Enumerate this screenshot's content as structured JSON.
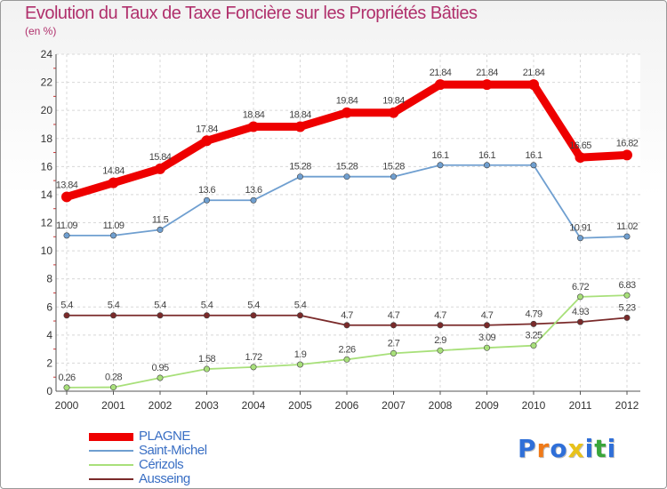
{
  "page": {
    "title": "Evolution du Taux de Taxe Foncière sur les Propriétés Bâties",
    "subtitle": "(en %)"
  },
  "chart_data": {
    "type": "line",
    "title": "Evolution du Taux de Taxe Foncière sur les Propriétés Bâties",
    "ylabel": "(en %)",
    "xlabel": "",
    "ylim": [
      0,
      24
    ],
    "yticks": [
      0,
      2,
      4,
      6,
      8,
      10,
      12,
      14,
      16,
      18,
      20,
      22,
      24
    ],
    "grid": true,
    "legend_position": "bottom-left",
    "categories": [
      "2000",
      "2001",
      "2002",
      "2003",
      "2004",
      "2005",
      "2006",
      "2007",
      "2008",
      "2009",
      "2010",
      "2011",
      "2012"
    ],
    "series": [
      {
        "name": "PLAGNE",
        "color": "#ee0000",
        "values": [
          13.84,
          14.84,
          15.84,
          17.84,
          18.84,
          18.84,
          19.84,
          19.84,
          21.84,
          21.84,
          21.84,
          16.65,
          16.82
        ],
        "labels": [
          "13.84",
          "14.84",
          "15.84",
          "17.84",
          "18.84",
          "18.84",
          "19.84",
          "19.84",
          "21.84",
          "21.84",
          "21.84",
          "16.65",
          "16.82"
        ]
      },
      {
        "name": "Saint-Michel",
        "color": "#6f9fd0",
        "values": [
          11.09,
          11.09,
          11.5,
          13.6,
          13.6,
          15.28,
          15.28,
          15.28,
          16.1,
          16.1,
          16.1,
          10.91,
          11.02
        ],
        "labels": [
          "11.09",
          "11.09",
          "11.5",
          "13.6",
          "13.6",
          "15.28",
          "15.28",
          "15.28",
          "16.1",
          "16.1",
          "16.1",
          "10.91",
          "11.02"
        ]
      },
      {
        "name": "Cérizols",
        "color": "#a8e07a",
        "values": [
          0.26,
          0.28,
          0.95,
          1.58,
          1.72,
          1.9,
          2.26,
          2.7,
          2.9,
          3.09,
          3.25,
          6.72,
          6.83
        ],
        "labels": [
          "0.26",
          "0.28",
          "0.95",
          "1.58",
          "1.72",
          "1.9",
          "2.26",
          "2.7",
          "2.9",
          "3.09",
          "3.25",
          "6.72",
          "6.83"
        ]
      },
      {
        "name": "Ausseing",
        "color": "#7a2a2a",
        "values": [
          5.4,
          5.4,
          5.4,
          5.4,
          5.4,
          5.4,
          4.7,
          4.7,
          4.7,
          4.7,
          4.79,
          4.93,
          5.23
        ],
        "labels": [
          "5.4",
          "5.4",
          "5.4",
          "5.4",
          "5.4",
          "5.4",
          "4.7",
          "4.7",
          "4.7",
          "4.7",
          "4.79",
          "4.93",
          "5.23"
        ]
      }
    ]
  },
  "logo": {
    "letters": [
      "P",
      "r",
      "o",
      "x",
      "i",
      "t",
      "i"
    ],
    "colors": [
      "#2f6fd8",
      "#f07a18",
      "#2f6fd8",
      "#e8c21a",
      "#2f6fd8",
      "#3aa63a",
      "#2f6fd8"
    ]
  }
}
